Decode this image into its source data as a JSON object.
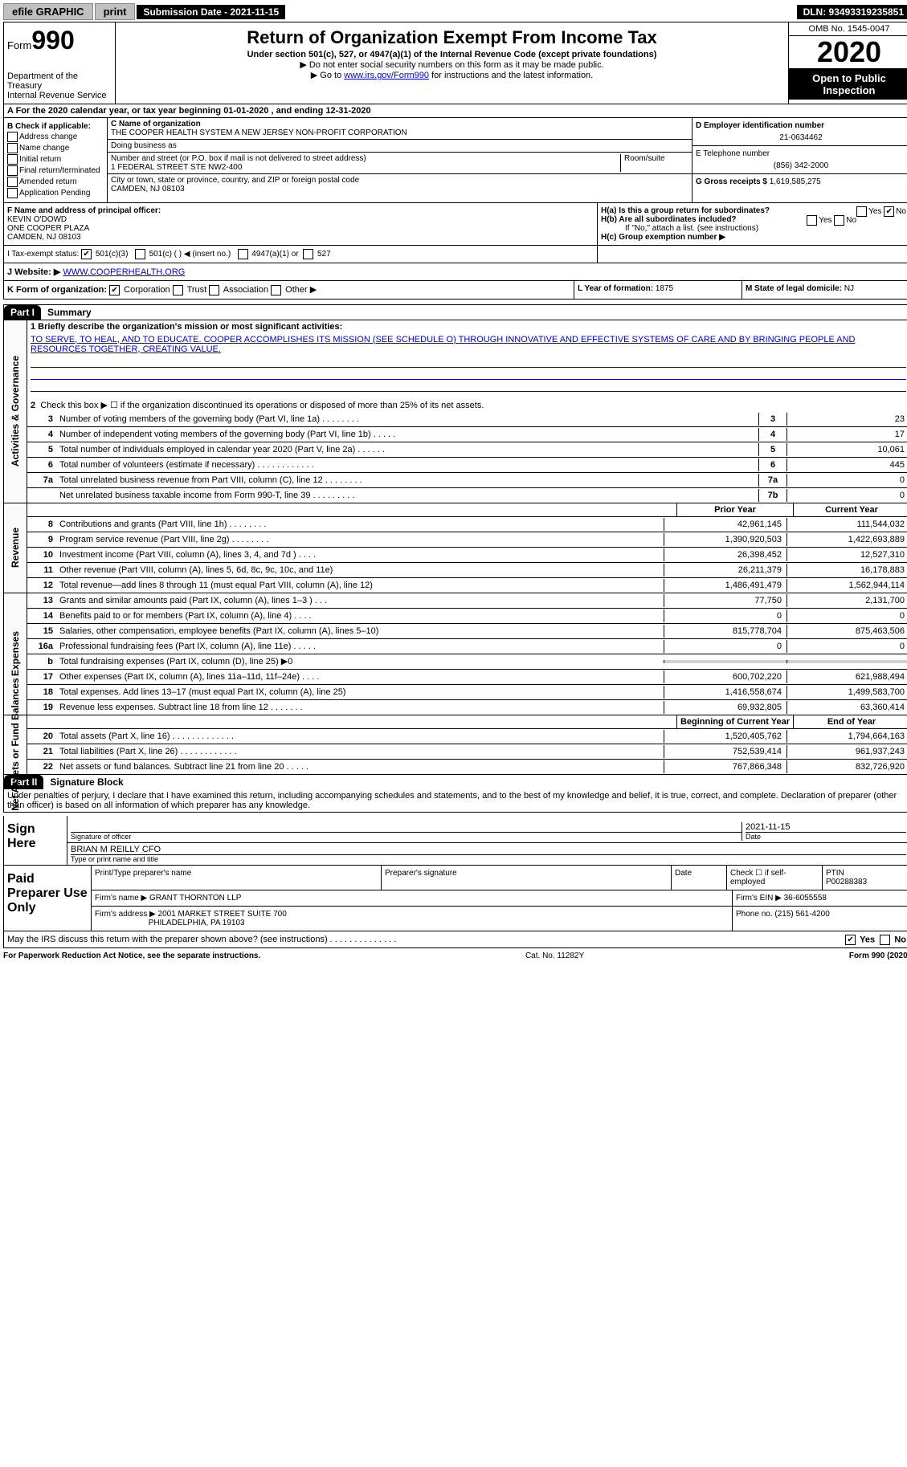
{
  "topbar": {
    "efile": "efile GRAPHIC",
    "print": "print",
    "sub_label": "Submission Date - 2021-11-15",
    "dln": "DLN: 93493319235851"
  },
  "header": {
    "form_prefix": "Form",
    "form_num": "990",
    "dept": "Department of the Treasury",
    "irs": "Internal Revenue Service",
    "title": "Return of Organization Exempt From Income Tax",
    "sub1": "Under section 501(c), 527, or 4947(a)(1) of the Internal Revenue Code (except private foundations)",
    "sub2": "▶ Do not enter social security numbers on this form as it may be made public.",
    "sub3_pre": "▶ Go to ",
    "sub3_link": "www.irs.gov/Form990",
    "sub3_post": " for instructions and the latest information.",
    "omb": "OMB No. 1545-0047",
    "year": "2020",
    "open": "Open to Public Inspection"
  },
  "line_a": "A For the 2020 calendar year, or tax year beginning 01-01-2020    , and ending 12-31-2020",
  "box_b": {
    "title": "B Check if applicable:",
    "items": [
      "Address change",
      "Name change",
      "Initial return",
      "Final return/terminated",
      "Amended return",
      "Application Pending"
    ]
  },
  "box_c": {
    "label": "C Name of organization",
    "name": "THE COOPER HEALTH SYSTEM A NEW JERSEY NON-PROFIT CORPORATION",
    "dba_label": "Doing business as",
    "addr_label": "Number and street (or P.O. box if mail is not delivered to street address)",
    "room_label": "Room/suite",
    "addr": "1 FEDERAL STREET STE NW2-400",
    "city_label": "City or town, state or province, country, and ZIP or foreign postal code",
    "city": "CAMDEN, NJ  08103"
  },
  "box_d": {
    "label": "D Employer identification number",
    "value": "21-0634462"
  },
  "box_e": {
    "label": "E Telephone number",
    "value": "(856) 342-2000"
  },
  "box_g": {
    "label": "G Gross receipts $",
    "value": "1,619,585,275"
  },
  "box_f": {
    "label": "F Name and address of principal officer:",
    "name": "KEVIN O'DOWD",
    "addr1": "ONE COOPER PLAZA",
    "addr2": "CAMDEN, NJ  08103"
  },
  "box_h": {
    "ha": "H(a)  Is this a group return for subordinates?",
    "ha_yes": "Yes",
    "ha_no": "No",
    "hb": "H(b)  Are all subordinates included?",
    "hb_note": "If \"No,\" attach a list. (see instructions)",
    "hc": "H(c)  Group exemption number ▶"
  },
  "line_i": {
    "label": "I   Tax-exempt status:",
    "opts": [
      "501(c)(3)",
      "501(c) (  ) ◀ (insert no.)",
      "4947(a)(1) or",
      "527"
    ]
  },
  "line_j": {
    "label": "J   Website: ▶",
    "value": "WWW.COOPERHEALTH.ORG"
  },
  "line_k": {
    "label": "K Form of organization:",
    "opts": [
      "Corporation",
      "Trust",
      "Association",
      "Other ▶"
    ],
    "l_label": "L Year of formation: ",
    "l_val": "1875",
    "m_label": "M State of legal domicile: ",
    "m_val": "NJ"
  },
  "part1": {
    "tab": "Part I",
    "title": "Summary",
    "q1": "1  Briefly describe the organization's mission or most significant activities:",
    "mission": "TO SERVE, TO HEAL, AND TO EDUCATE. COOPER ACCOMPLISHES ITS MISSION (SEE SCHEDULE O) THROUGH INNOVATIVE AND EFFECTIVE SYSTEMS OF CARE AND BY BRINGING PEOPLE AND RESOURCES TOGETHER, CREATING VALUE.",
    "q2": "Check this box ▶ ☐  if the organization discontinued its operations or disposed of more than 25% of its net assets."
  },
  "gov_side": "Activities & Governance",
  "gov_lines": [
    {
      "n": "3",
      "d": "Number of voting members of the governing body (Part VI, line 1a)  .   .   .   .   .   .   .   .",
      "box": "3",
      "v": "23"
    },
    {
      "n": "4",
      "d": "Number of independent voting members of the governing body (Part VI, line 1b)  .   .   .   .   .",
      "box": "4",
      "v": "17"
    },
    {
      "n": "5",
      "d": "Total number of individuals employed in calendar year 2020 (Part V, line 2a)  .   .   .   .   .   .",
      "box": "5",
      "v": "10,061"
    },
    {
      "n": "6",
      "d": "Total number of volunteers (estimate if necessary)  .   .   .   .   .   .   .   .   .   .   .   .",
      "box": "6",
      "v": "445"
    },
    {
      "n": "7a",
      "d": "Total unrelated business revenue from Part VIII, column (C), line 12  .   .   .   .   .   .   .   .",
      "box": "7a",
      "v": "0"
    },
    {
      "n": "",
      "d": "Net unrelated business taxable income from Form 990-T, line 39  .   .   .   .   .   .   .   .   .",
      "box": "7b",
      "v": "0"
    }
  ],
  "col_headers": {
    "prior": "Prior Year",
    "current": "Current Year",
    "beg": "Beginning of Current Year",
    "end": "End of Year"
  },
  "rev_side": "Revenue",
  "rev_lines": [
    {
      "n": "8",
      "d": "Contributions and grants (Part VIII, line 1h)  .   .   .   .   .   .   .   .",
      "p": "42,961,145",
      "c": "111,544,032"
    },
    {
      "n": "9",
      "d": "Program service revenue (Part VIII, line 2g)  .   .   .   .   .   .   .   .",
      "p": "1,390,920,503",
      "c": "1,422,693,889"
    },
    {
      "n": "10",
      "d": "Investment income (Part VIII, column (A), lines 3, 4, and 7d )  .   .   .   .",
      "p": "26,398,452",
      "c": "12,527,310"
    },
    {
      "n": "11",
      "d": "Other revenue (Part VIII, column (A), lines 5, 6d, 8c, 9c, 10c, and 11e)",
      "p": "26,211,379",
      "c": "16,178,883"
    },
    {
      "n": "12",
      "d": "Total revenue—add lines 8 through 11 (must equal Part VIII, column (A), line 12)",
      "p": "1,486,491,479",
      "c": "1,562,944,114"
    }
  ],
  "exp_side": "Expenses",
  "exp_lines": [
    {
      "n": "13",
      "d": "Grants and similar amounts paid (Part IX, column (A), lines 1–3 )  .   .   .",
      "p": "77,750",
      "c": "2,131,700"
    },
    {
      "n": "14",
      "d": "Benefits paid to or for members (Part IX, column (A), line 4)  .   .   .   .",
      "p": "0",
      "c": "0"
    },
    {
      "n": "15",
      "d": "Salaries, other compensation, employee benefits (Part IX, column (A), lines 5–10)",
      "p": "815,778,704",
      "c": "875,463,506"
    },
    {
      "n": "16a",
      "d": "Professional fundraising fees (Part IX, column (A), line 11e)  .   .   .   .   .",
      "p": "0",
      "c": "0"
    },
    {
      "n": "b",
      "d": "Total fundraising expenses (Part IX, column (D), line 25) ▶0",
      "p": "",
      "c": "",
      "shaded": true
    },
    {
      "n": "17",
      "d": "Other expenses (Part IX, column (A), lines 11a–11d, 11f–24e)  .   .   .   .",
      "p": "600,702,220",
      "c": "621,988,494"
    },
    {
      "n": "18",
      "d": "Total expenses. Add lines 13–17 (must equal Part IX, column (A), line 25)",
      "p": "1,416,558,674",
      "c": "1,499,583,700"
    },
    {
      "n": "19",
      "d": "Revenue less expenses. Subtract line 18 from line 12  .   .   .   .   .   .   .",
      "p": "69,932,805",
      "c": "63,360,414"
    }
  ],
  "net_side": "Net Assets or Fund Balances",
  "net_lines": [
    {
      "n": "20",
      "d": "Total assets (Part X, line 16)  .   .   .   .   .   .   .   .   .   .   .   .   .",
      "p": "1,520,405,762",
      "c": "1,794,664,163"
    },
    {
      "n": "21",
      "d": "Total liabilities (Part X, line 26)  .   .   .   .   .   .   .   .   .   .   .   .",
      "p": "752,539,414",
      "c": "961,937,243"
    },
    {
      "n": "22",
      "d": "Net assets or fund balances. Subtract line 21 from line 20  .   .   .   .   .",
      "p": "767,866,348",
      "c": "832,726,920"
    }
  ],
  "part2": {
    "tab": "Part II",
    "title": "Signature Block",
    "decl": "Under penalties of perjury, I declare that I have examined this return, including accompanying schedules and statements, and to the best of my knowledge and belief, it is true, correct, and complete. Declaration of preparer (other than officer) is based on all information of which preparer has any knowledge."
  },
  "sign": {
    "label": "Sign Here",
    "sig_label": "Signature of officer",
    "date": "2021-11-15",
    "date_label": "Date",
    "name": "BRIAN M REILLY CFO",
    "name_label": "Type or print name and title"
  },
  "prep": {
    "label": "Paid Preparer Use Only",
    "h1": "Print/Type preparer's name",
    "h2": "Preparer's signature",
    "h3": "Date",
    "h4_label": "Check ☐ if self-employed",
    "h5_label": "PTIN",
    "h5_val": "P00288383",
    "firm_label": "Firm's name    ▶",
    "firm": "GRANT THORNTON LLP",
    "ein_label": "Firm's EIN ▶",
    "ein": "36-6055558",
    "addr_label": "Firm's address ▶",
    "addr1": "2001 MARKET STREET SUITE 700",
    "addr2": "PHILADELPHIA, PA  19103",
    "phone_label": "Phone no.",
    "phone": "(215) 561-4200",
    "discuss": "May the IRS discuss this return with the preparer shown above? (see instructions)  .   .   .   .   .   .   .   .   .   .   .   .   .   .",
    "yes": "Yes",
    "no": "No"
  },
  "footer": {
    "left": "For Paperwork Reduction Act Notice, see the separate instructions.",
    "mid": "Cat. No. 11282Y",
    "right": "Form 990 (2020)"
  }
}
